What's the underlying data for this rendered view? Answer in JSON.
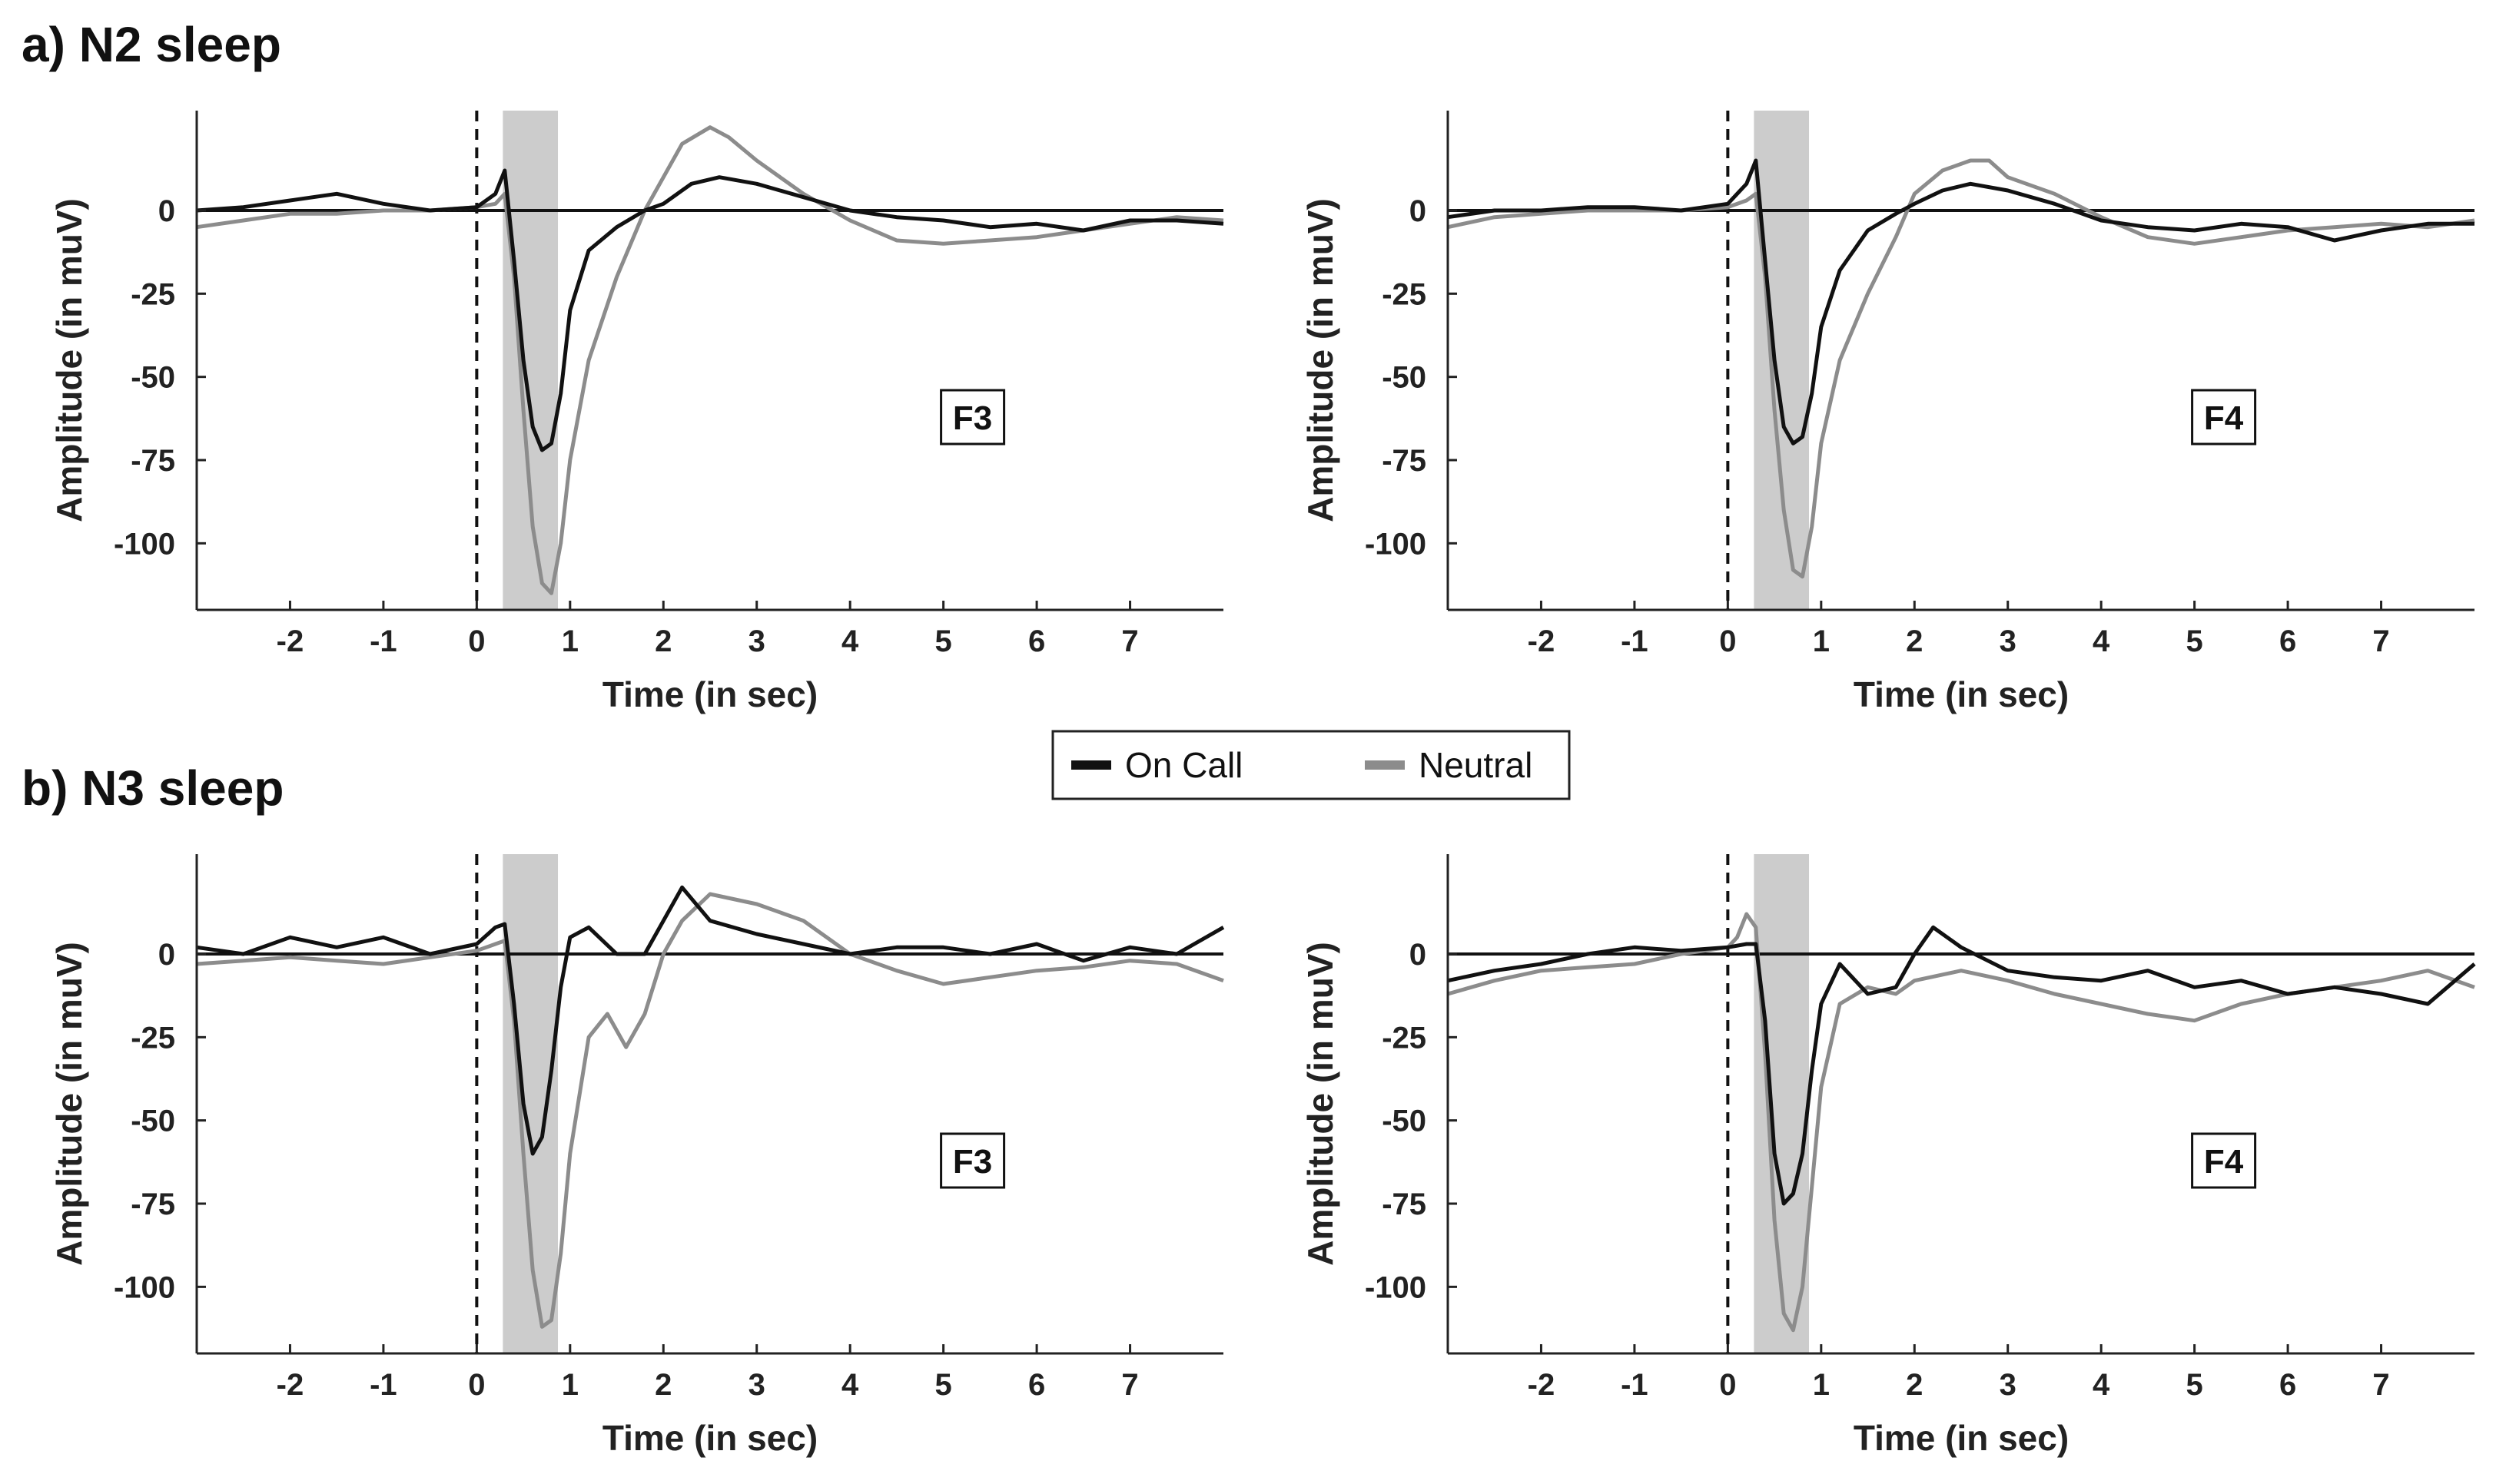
{
  "figure": {
    "sections": [
      {
        "id": "n2",
        "title": "a) N2 sleep"
      },
      {
        "id": "n3",
        "title": "b) N3 sleep"
      }
    ],
    "legend": {
      "entries": [
        {
          "label": "On Call",
          "color": "#111111"
        },
        {
          "label": "Neutral",
          "color": "#8c8c8c"
        }
      ]
    },
    "colors": {
      "on_call": "#111111",
      "neutral": "#8c8c8c",
      "stim_window": "#cccccc",
      "axis": "#222222"
    }
  },
  "chart_data": [
    {
      "id": "n2_f3",
      "type": "line",
      "section": "a) N2 sleep",
      "electrode": "F3",
      "xlabel": "Time (in sec)",
      "ylabel": "Amplitude (in muV)",
      "xlim": [
        -3.0,
        8.0
      ],
      "ylim": [
        -120,
        30
      ],
      "xticks": [
        -2,
        -1,
        0,
        1,
        2,
        3,
        4,
        5,
        6,
        7
      ],
      "yticks": [
        0,
        -25,
        -50,
        -75,
        -100
      ],
      "stim_window": [
        0.28,
        0.87
      ],
      "onset_marker": 0,
      "series": [
        {
          "name": "On Call",
          "x": [
            -3.0,
            -2.5,
            -2.0,
            -1.5,
            -1.0,
            -0.5,
            0.0,
            0.2,
            0.3,
            0.4,
            0.5,
            0.6,
            0.7,
            0.8,
            0.9,
            1.0,
            1.2,
            1.5,
            1.8,
            2.0,
            2.3,
            2.6,
            3.0,
            3.5,
            4.0,
            4.5,
            5.0,
            5.5,
            6.0,
            6.5,
            7.0,
            7.5,
            8.0
          ],
          "y": [
            0,
            1,
            3,
            5,
            2,
            0,
            1,
            5,
            12,
            -15,
            -45,
            -65,
            -72,
            -70,
            -55,
            -30,
            -12,
            -5,
            0,
            2,
            8,
            10,
            8,
            4,
            0,
            -2,
            -3,
            -5,
            -4,
            -6,
            -3,
            -3,
            -4
          ]
        },
        {
          "name": "Neutral",
          "x": [
            -3.0,
            -2.5,
            -2.0,
            -1.5,
            -1.0,
            -0.5,
            0.0,
            0.2,
            0.3,
            0.4,
            0.5,
            0.6,
            0.7,
            0.8,
            0.9,
            1.0,
            1.2,
            1.5,
            1.8,
            2.0,
            2.2,
            2.5,
            2.7,
            3.0,
            3.5,
            4.0,
            4.5,
            5.0,
            5.5,
            6.0,
            6.5,
            7.0,
            7.5,
            8.0
          ],
          "y": [
            -5,
            -3,
            -1,
            -1,
            0,
            0,
            1,
            2,
            5,
            -20,
            -60,
            -95,
            -112,
            -115,
            -100,
            -75,
            -45,
            -20,
            0,
            10,
            20,
            25,
            22,
            15,
            5,
            -3,
            -9,
            -10,
            -9,
            -8,
            -6,
            -4,
            -2,
            -3
          ]
        }
      ]
    },
    {
      "id": "n2_f4",
      "type": "line",
      "section": "a) N2 sleep",
      "electrode": "F4",
      "xlabel": "Time (in sec)",
      "ylabel": "Amplitude (in muV)",
      "xlim": [
        -3.0,
        8.0
      ],
      "ylim": [
        -120,
        30
      ],
      "xticks": [
        -2,
        -1,
        0,
        1,
        2,
        3,
        4,
        5,
        6,
        7
      ],
      "yticks": [
        0,
        -25,
        -50,
        -75,
        -100
      ],
      "stim_window": [
        0.28,
        0.87
      ],
      "onset_marker": 0,
      "series": [
        {
          "name": "On Call",
          "x": [
            -3.0,
            -2.5,
            -2.0,
            -1.5,
            -1.0,
            -0.5,
            0.0,
            0.2,
            0.3,
            0.4,
            0.5,
            0.6,
            0.7,
            0.8,
            0.9,
            1.0,
            1.2,
            1.5,
            1.8,
            2.0,
            2.3,
            2.6,
            3.0,
            3.5,
            4.0,
            4.5,
            5.0,
            5.5,
            6.0,
            6.5,
            7.0,
            7.5,
            8.0
          ],
          "y": [
            -2,
            0,
            0,
            1,
            1,
            0,
            2,
            8,
            15,
            -15,
            -45,
            -65,
            -70,
            -68,
            -55,
            -35,
            -18,
            -6,
            -1,
            2,
            6,
            8,
            6,
            2,
            -3,
            -5,
            -6,
            -4,
            -5,
            -9,
            -6,
            -4,
            -4
          ]
        },
        {
          "name": "Neutral",
          "x": [
            -3.0,
            -2.5,
            -2.0,
            -1.5,
            -1.0,
            -0.5,
            0.0,
            0.2,
            0.3,
            0.4,
            0.5,
            0.6,
            0.7,
            0.8,
            0.9,
            1.0,
            1.2,
            1.5,
            1.8,
            2.0,
            2.3,
            2.6,
            2.8,
            3.0,
            3.5,
            4.0,
            4.5,
            5.0,
            5.5,
            6.0,
            6.5,
            7.0,
            7.5,
            8.0
          ],
          "y": [
            -5,
            -2,
            -1,
            0,
            0,
            0,
            1,
            3,
            5,
            -20,
            -60,
            -90,
            -108,
            -110,
            -95,
            -70,
            -45,
            -25,
            -8,
            5,
            12,
            15,
            15,
            10,
            5,
            -2,
            -8,
            -10,
            -8,
            -6,
            -5,
            -4,
            -5,
            -3
          ]
        }
      ]
    },
    {
      "id": "n3_f3",
      "type": "line",
      "section": "b) N3 sleep",
      "electrode": "F3",
      "xlabel": "Time (in sec)",
      "ylabel": "Amplitude (in muV)",
      "xlim": [
        -3.0,
        8.0
      ],
      "ylim": [
        -120,
        30
      ],
      "xticks": [
        -2,
        -1,
        0,
        1,
        2,
        3,
        4,
        5,
        6,
        7
      ],
      "yticks": [
        0,
        -25,
        -50,
        -75,
        -100
      ],
      "stim_window": [
        0.28,
        0.87
      ],
      "onset_marker": 0,
      "series": [
        {
          "name": "On Call",
          "x": [
            -3.0,
            -2.5,
            -2.0,
            -1.5,
            -1.0,
            -0.5,
            0.0,
            0.2,
            0.3,
            0.4,
            0.5,
            0.6,
            0.7,
            0.8,
            0.9,
            1.0,
            1.2,
            1.5,
            1.8,
            2.0,
            2.2,
            2.5,
            3.0,
            3.5,
            4.0,
            4.5,
            5.0,
            5.5,
            6.0,
            6.5,
            7.0,
            7.5,
            8.0
          ],
          "y": [
            2,
            0,
            5,
            2,
            5,
            0,
            3,
            8,
            9,
            -15,
            -45,
            -60,
            -55,
            -35,
            -10,
            5,
            8,
            0,
            0,
            10,
            20,
            10,
            6,
            3,
            0,
            2,
            2,
            0,
            3,
            -2,
            2,
            0,
            8
          ]
        },
        {
          "name": "Neutral",
          "x": [
            -3.0,
            -2.5,
            -2.0,
            -1.5,
            -1.0,
            -0.5,
            0.0,
            0.2,
            0.3,
            0.4,
            0.5,
            0.6,
            0.7,
            0.8,
            0.9,
            1.0,
            1.2,
            1.4,
            1.6,
            1.8,
            2.0,
            2.2,
            2.5,
            3.0,
            3.5,
            4.0,
            4.5,
            5.0,
            5.5,
            6.0,
            6.5,
            7.0,
            7.5,
            8.0
          ],
          "y": [
            -3,
            -2,
            -1,
            -2,
            -3,
            -1,
            1,
            3,
            4,
            -20,
            -60,
            -95,
            -112,
            -110,
            -90,
            -60,
            -25,
            -18,
            -28,
            -18,
            0,
            10,
            18,
            15,
            10,
            0,
            -5,
            -9,
            -7,
            -5,
            -4,
            -2,
            -3,
            -8
          ]
        }
      ]
    },
    {
      "id": "n3_f4",
      "type": "line",
      "section": "b) N3 sleep",
      "electrode": "F4",
      "xlabel": "Time (in sec)",
      "ylabel": "Amplitude (in muV)",
      "xlim": [
        -3.0,
        8.0
      ],
      "ylim": [
        -120,
        30
      ],
      "xticks": [
        -2,
        -1,
        0,
        1,
        2,
        3,
        4,
        5,
        6,
        7
      ],
      "yticks": [
        0,
        -25,
        -50,
        -75,
        -100
      ],
      "stim_window": [
        0.28,
        0.87
      ],
      "onset_marker": 0,
      "series": [
        {
          "name": "On Call",
          "x": [
            -3.0,
            -2.5,
            -2.0,
            -1.5,
            -1.0,
            -0.5,
            0.0,
            0.2,
            0.3,
            0.4,
            0.5,
            0.6,
            0.7,
            0.8,
            0.9,
            1.0,
            1.2,
            1.5,
            1.8,
            2.0,
            2.2,
            2.5,
            3.0,
            3.5,
            4.0,
            4.5,
            5.0,
            5.5,
            6.0,
            6.5,
            7.0,
            7.5,
            8.0
          ],
          "y": [
            -8,
            -5,
            -3,
            0,
            2,
            1,
            2,
            3,
            3,
            -20,
            -60,
            -75,
            -72,
            -60,
            -35,
            -15,
            -3,
            -12,
            -10,
            0,
            8,
            2,
            -5,
            -7,
            -8,
            -5,
            -10,
            -8,
            -12,
            -10,
            -12,
            -15,
            -3
          ]
        },
        {
          "name": "Neutral",
          "x": [
            -3.0,
            -2.5,
            -2.0,
            -1.5,
            -1.0,
            -0.5,
            0.0,
            0.1,
            0.2,
            0.3,
            0.4,
            0.5,
            0.6,
            0.7,
            0.8,
            0.9,
            1.0,
            1.2,
            1.5,
            1.8,
            2.0,
            2.5,
            3.0,
            3.5,
            4.0,
            4.5,
            5.0,
            5.5,
            6.0,
            6.5,
            7.0,
            7.5,
            8.0
          ],
          "y": [
            -12,
            -8,
            -5,
            -4,
            -3,
            0,
            2,
            5,
            12,
            8,
            -30,
            -80,
            -108,
            -113,
            -100,
            -70,
            -40,
            -15,
            -10,
            -12,
            -8,
            -5,
            -8,
            -12,
            -15,
            -18,
            -20,
            -15,
            -12,
            -10,
            -8,
            -5,
            -10
          ]
        }
      ]
    }
  ]
}
